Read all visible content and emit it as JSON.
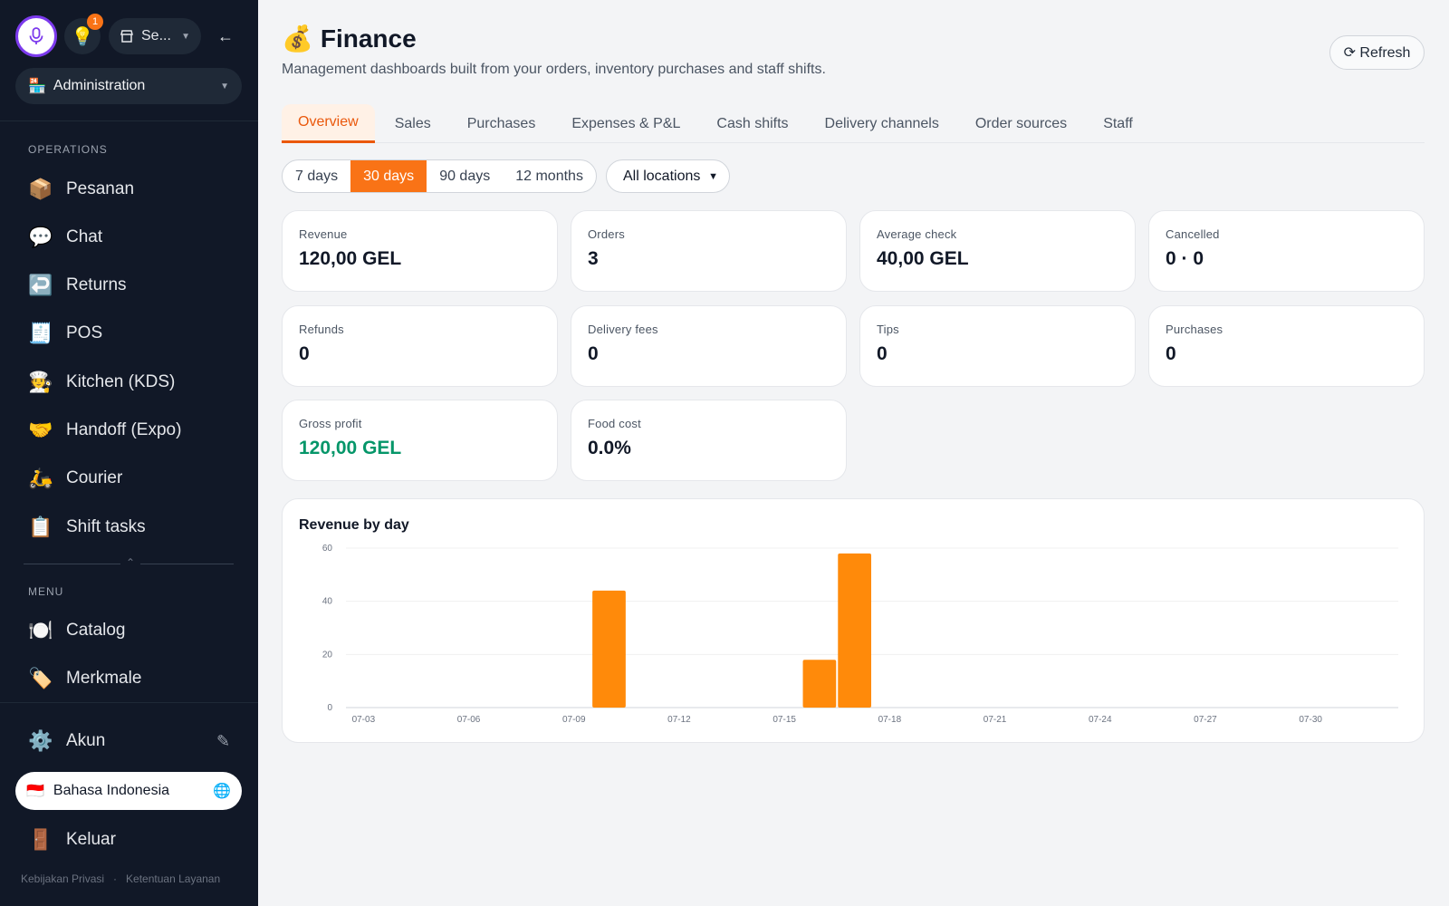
{
  "sidebar": {
    "store_label": "Se...",
    "notification_count": "1",
    "collapse_glyph": "←",
    "admin_label": "Administration",
    "operations_label": "OPERATIONS",
    "operations": [
      {
        "icon": "📦",
        "label": "Pesanan"
      },
      {
        "icon": "💬",
        "label": "Chat"
      },
      {
        "icon": "↩️",
        "label": "Returns"
      },
      {
        "icon": "🧾",
        "label": "POS"
      },
      {
        "icon": "🧑‍🍳",
        "label": "Kitchen (KDS)"
      },
      {
        "icon": "🤝",
        "label": "Handoff (Expo)"
      },
      {
        "icon": "🛵",
        "label": "Courier"
      },
      {
        "icon": "📋",
        "label": "Shift tasks"
      }
    ],
    "menu_label": "MENU",
    "menu": [
      {
        "icon": "🍽️",
        "label": "Catalog"
      },
      {
        "icon": "🏷️",
        "label": "Merkmale"
      }
    ],
    "account": {
      "icon": "⚙️",
      "label": "Akun"
    },
    "language": {
      "flag": "🇮🇩",
      "label": "Bahasa Indonesia"
    },
    "logout": {
      "icon": "🚪",
      "label": "Keluar"
    },
    "footer": {
      "privacy": "Kebijakan Privasi",
      "separator": "·",
      "terms": "Ketentuan Layanan"
    }
  },
  "header": {
    "icon": "💰",
    "title": "Finance",
    "subtitle": "Management dashboards built from your orders, inventory purchases and staff shifts.",
    "refresh_label": "⟳ Refresh"
  },
  "tabs": [
    "Overview",
    "Sales",
    "Purchases",
    "Expenses & P&L",
    "Cash shifts",
    "Delivery channels",
    "Order sources",
    "Staff"
  ],
  "active_tab": "Overview",
  "ranges": [
    "7 days",
    "30 days",
    "90 days",
    "12 months"
  ],
  "active_range": "30 days",
  "location": "All locations",
  "kpis": [
    {
      "label": "Revenue",
      "value": "120,00 GEL"
    },
    {
      "label": "Orders",
      "value": "3"
    },
    {
      "label": "Average check",
      "value": "40,00 GEL"
    },
    {
      "label": "Cancelled",
      "value": "0 · 0"
    },
    {
      "label": "Refunds",
      "value": "0"
    },
    {
      "label": "Delivery fees",
      "value": "0"
    },
    {
      "label": "Tips",
      "value": "0"
    },
    {
      "label": "Purchases",
      "value": "0"
    },
    {
      "label": "Gross profit",
      "value": "120,00 GEL"
    },
    {
      "label": "Food cost",
      "value": "0.0%"
    }
  ],
  "colors": {
    "accent": "#f97316",
    "profit": "#059669",
    "sidebar": "#111827"
  },
  "chart_data": {
    "type": "bar",
    "title": "Revenue by day",
    "xlabel": "",
    "ylabel": "",
    "ylim": [
      0,
      60
    ],
    "yticks": [
      0,
      20,
      40,
      60
    ],
    "categories": [
      "07-03",
      "07-04",
      "07-05",
      "07-06",
      "07-07",
      "07-08",
      "07-09",
      "07-10",
      "07-11",
      "07-12",
      "07-13",
      "07-14",
      "07-15",
      "07-16",
      "07-17",
      "07-18",
      "07-19",
      "07-20",
      "07-21",
      "07-22",
      "07-23",
      "07-24",
      "07-25",
      "07-26",
      "07-27",
      "07-28",
      "07-29",
      "07-30",
      "07-31",
      "08-01"
    ],
    "xtick_labels": [
      "07-03",
      "07-06",
      "07-09",
      "07-12",
      "07-15",
      "07-18",
      "07-21",
      "07-24",
      "07-27",
      "07-30"
    ],
    "values": [
      0,
      0,
      0,
      0,
      0,
      0,
      0,
      44,
      0,
      0,
      0,
      0,
      0,
      18,
      58,
      0,
      0,
      0,
      0,
      0,
      0,
      0,
      0,
      0,
      0,
      0,
      0,
      0,
      0,
      0
    ],
    "color": "#ff8a0a",
    "grid": true,
    "legend": "none"
  }
}
